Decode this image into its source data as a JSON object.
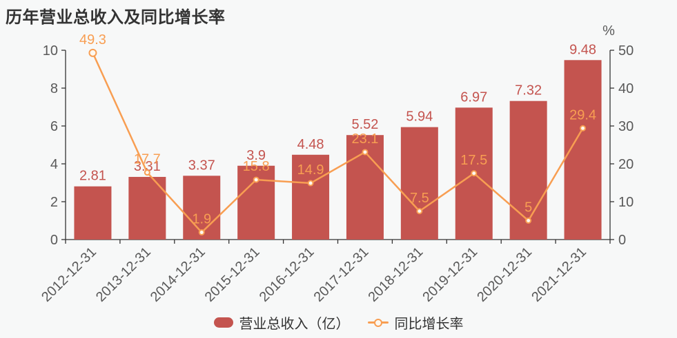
{
  "chart_data": {
    "type": "bar+line",
    "title": "历年营业总收入及同比增长率",
    "categories": [
      "2012-12-31",
      "2013-12-31",
      "2014-12-31",
      "2015-12-31",
      "2016-12-31",
      "2017-12-31",
      "2018-12-31",
      "2019-12-31",
      "2020-12-31",
      "2021-12-31"
    ],
    "series": [
      {
        "name": "营业总收入（亿）",
        "type": "bar",
        "axis": "left",
        "color": "#c4544f",
        "values": [
          2.81,
          3.31,
          3.37,
          3.9,
          4.48,
          5.52,
          5.94,
          6.97,
          7.32,
          9.48
        ]
      },
      {
        "name": "同比增长率",
        "type": "line",
        "axis": "right",
        "color": "#f89e52",
        "values": [
          49.3,
          17.7,
          1.9,
          15.8,
          14.9,
          23.1,
          7.5,
          17.5,
          5,
          29.4
        ]
      }
    ],
    "left_axis": {
      "min": 0,
      "max": 10,
      "ticks": [
        0,
        2,
        4,
        6,
        8,
        10
      ]
    },
    "right_axis": {
      "min": 0,
      "max": 50,
      "ticks": [
        0,
        10,
        20,
        30,
        40,
        50
      ],
      "unit": "%"
    },
    "legend_position": "bottom-center",
    "grid": false,
    "colors": {
      "axis_line": "#333333",
      "axis_label": "#595959",
      "title": "#333333",
      "background": "#f7f8f8"
    }
  }
}
